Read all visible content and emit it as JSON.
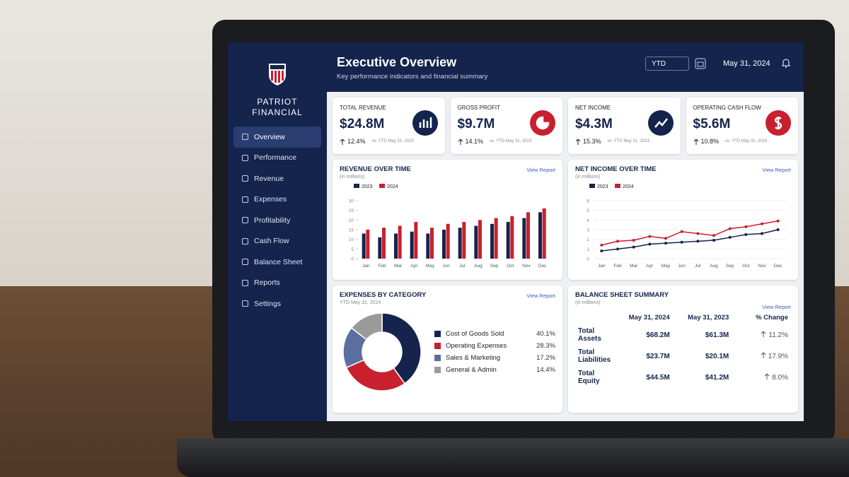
{
  "brand": {
    "line1": "PATRIOT",
    "line2": "FINANCIAL"
  },
  "nav": [
    "Overview",
    "Performance",
    "Revenue",
    "Expenses",
    "Profitability",
    "Cash Flow",
    "Balance Sheet",
    "Reports",
    "Settings"
  ],
  "header": {
    "title": "Executive Overview",
    "subtitle": "Key performance indicators and financial summary",
    "period": "YTD",
    "date": "May 31, 2024"
  },
  "kpis": [
    {
      "label": "TOTAL REVENUE",
      "value": "$24.8M",
      "change": "12.4%",
      "comparison": "vs. YTD May 31, 2023"
    },
    {
      "label": "GROSS PROFIT",
      "value": "$9.7M",
      "change": "14.1%",
      "comparison": "vs. YTD May 31, 2023"
    },
    {
      "label": "NET INCOME",
      "value": "$4.3M",
      "change": "15.3%",
      "comparison": "vs. YTD May 31, 2023"
    },
    {
      "label": "OPERATING CASH FLOW",
      "value": "$5.6M",
      "change": "10.8%",
      "comparison": "vs. YTD May 31, 2023"
    }
  ],
  "revenue_chart": {
    "type": "bar",
    "title": "REVENUE OVER TIME",
    "subtitle": "(in millions)",
    "link": "View Report",
    "categories": [
      "Jan",
      "Feb",
      "Mar",
      "Apr",
      "May",
      "Jun",
      "Jul",
      "Aug",
      "Sep",
      "Oct",
      "Nov",
      "Dec"
    ],
    "series": [
      {
        "name": "2023",
        "color": "#14244d",
        "values": [
          13,
          11,
          13,
          14,
          13,
          15,
          16,
          17,
          18,
          19,
          21,
          24
        ]
      },
      {
        "name": "2024",
        "color": "#c8202f",
        "values": [
          15,
          16,
          17,
          19,
          16,
          18,
          19,
          20,
          21,
          22,
          24,
          26
        ]
      }
    ],
    "ylim": [
      0,
      30
    ],
    "yticks": [
      0,
      5,
      10,
      15,
      20,
      25,
      30
    ]
  },
  "net_income_chart": {
    "type": "line",
    "title": "NET INCOME OVER TIME",
    "subtitle": "(in millions)",
    "link": "View Report",
    "categories": [
      "Jan",
      "Feb",
      "Mar",
      "Apr",
      "May",
      "Jun",
      "Jul",
      "Aug",
      "Sep",
      "Oct",
      "Nov",
      "Dec"
    ],
    "series": [
      {
        "name": "2023",
        "color": "#14244d",
        "values": [
          0.8,
          1.0,
          1.2,
          1.5,
          1.6,
          1.7,
          1.8,
          1.9,
          2.2,
          2.5,
          2.6,
          3.0
        ]
      },
      {
        "name": "2024",
        "color": "#c8202f",
        "values": [
          1.4,
          1.8,
          1.9,
          2.3,
          2.1,
          2.8,
          2.6,
          2.4,
          3.1,
          3.3,
          3.6,
          3.9
        ]
      }
    ],
    "ylim": [
      0,
      6
    ],
    "yticks": [
      0,
      1,
      2,
      3,
      4,
      5,
      6
    ]
  },
  "expenses": {
    "type": "pie",
    "title": "EXPENSES BY CATEGORY",
    "subtitle": "YTD May 31, 2024",
    "link": "View Report",
    "items": [
      {
        "name": "Cost of Goods Sold",
        "value": 40.1,
        "value_label": "40.1%",
        "color": "#14244d"
      },
      {
        "name": "Operating Expenses",
        "value": 28.3,
        "value_label": "28.3%",
        "color": "#c8202f"
      },
      {
        "name": "Sales & Marketing",
        "value": 17.2,
        "value_label": "17.2%",
        "color": "#5a6f9f"
      },
      {
        "name": "General & Admin",
        "value": 14.4,
        "value_label": "14.4%",
        "color": "#9a9a9a"
      }
    ]
  },
  "balance_sheet": {
    "title": "BALANCE SHEET SUMMARY",
    "subtitle": "(in millions)",
    "link": "View Report",
    "columns": [
      "May 31, 2024",
      "May 31, 2023",
      "% Change"
    ],
    "rows": [
      [
        "Total Assets",
        "$68.2M",
        "$61.3M",
        "11.2%"
      ],
      [
        "Total Liabilities",
        "$23.7M",
        "$20.1M",
        "17.9%"
      ],
      [
        "Total Equity",
        "$44.5M",
        "$41.2M",
        "8.0%"
      ]
    ]
  }
}
